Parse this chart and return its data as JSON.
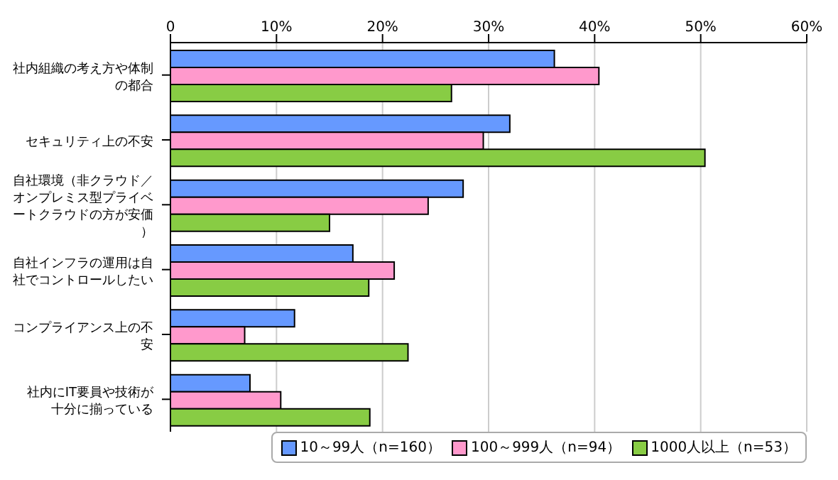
{
  "chart_data": {
    "type": "bar",
    "orientation": "horizontal",
    "categories": [
      "社内組織の考え方や体制の都合",
      "セキュリティ上の不安",
      "自社環境（非クラウド／オンプレミス型プライベートクラウドの方が安価）",
      "自社インフラの運用は自社でコントロールしたい",
      "コンプライアンス上の不安",
      "社内にIT要員や技術が十分に揃っている"
    ],
    "series": [
      {
        "name": "10～99人（n=160）",
        "color": "#6699ff",
        "values": [
          36.2,
          32.0,
          27.6,
          17.2,
          11.7,
          7.5
        ]
      },
      {
        "name": "100～999人（n=94）",
        "color": "#ff99cc",
        "values": [
          40.4,
          29.5,
          24.3,
          21.1,
          7.0,
          10.4
        ]
      },
      {
        "name": "1000人以上（n=53）",
        "color": "#88cc44",
        "values": [
          26.5,
          50.4,
          15.0,
          18.7,
          22.4,
          18.8
        ]
      }
    ],
    "xlim": [
      0,
      60
    ],
    "xticks": [
      0,
      {
        "value": 10,
        "label": "10%"
      },
      {
        "value": 20,
        "label": "20%"
      },
      {
        "value": 30,
        "label": "30%"
      },
      {
        "value": 40,
        "label": "40%"
      },
      {
        "value": 50,
        "label": "50%"
      },
      {
        "value": 60,
        "label": "60%"
      }
    ],
    "grid": "x",
    "legend": "bottom right"
  }
}
